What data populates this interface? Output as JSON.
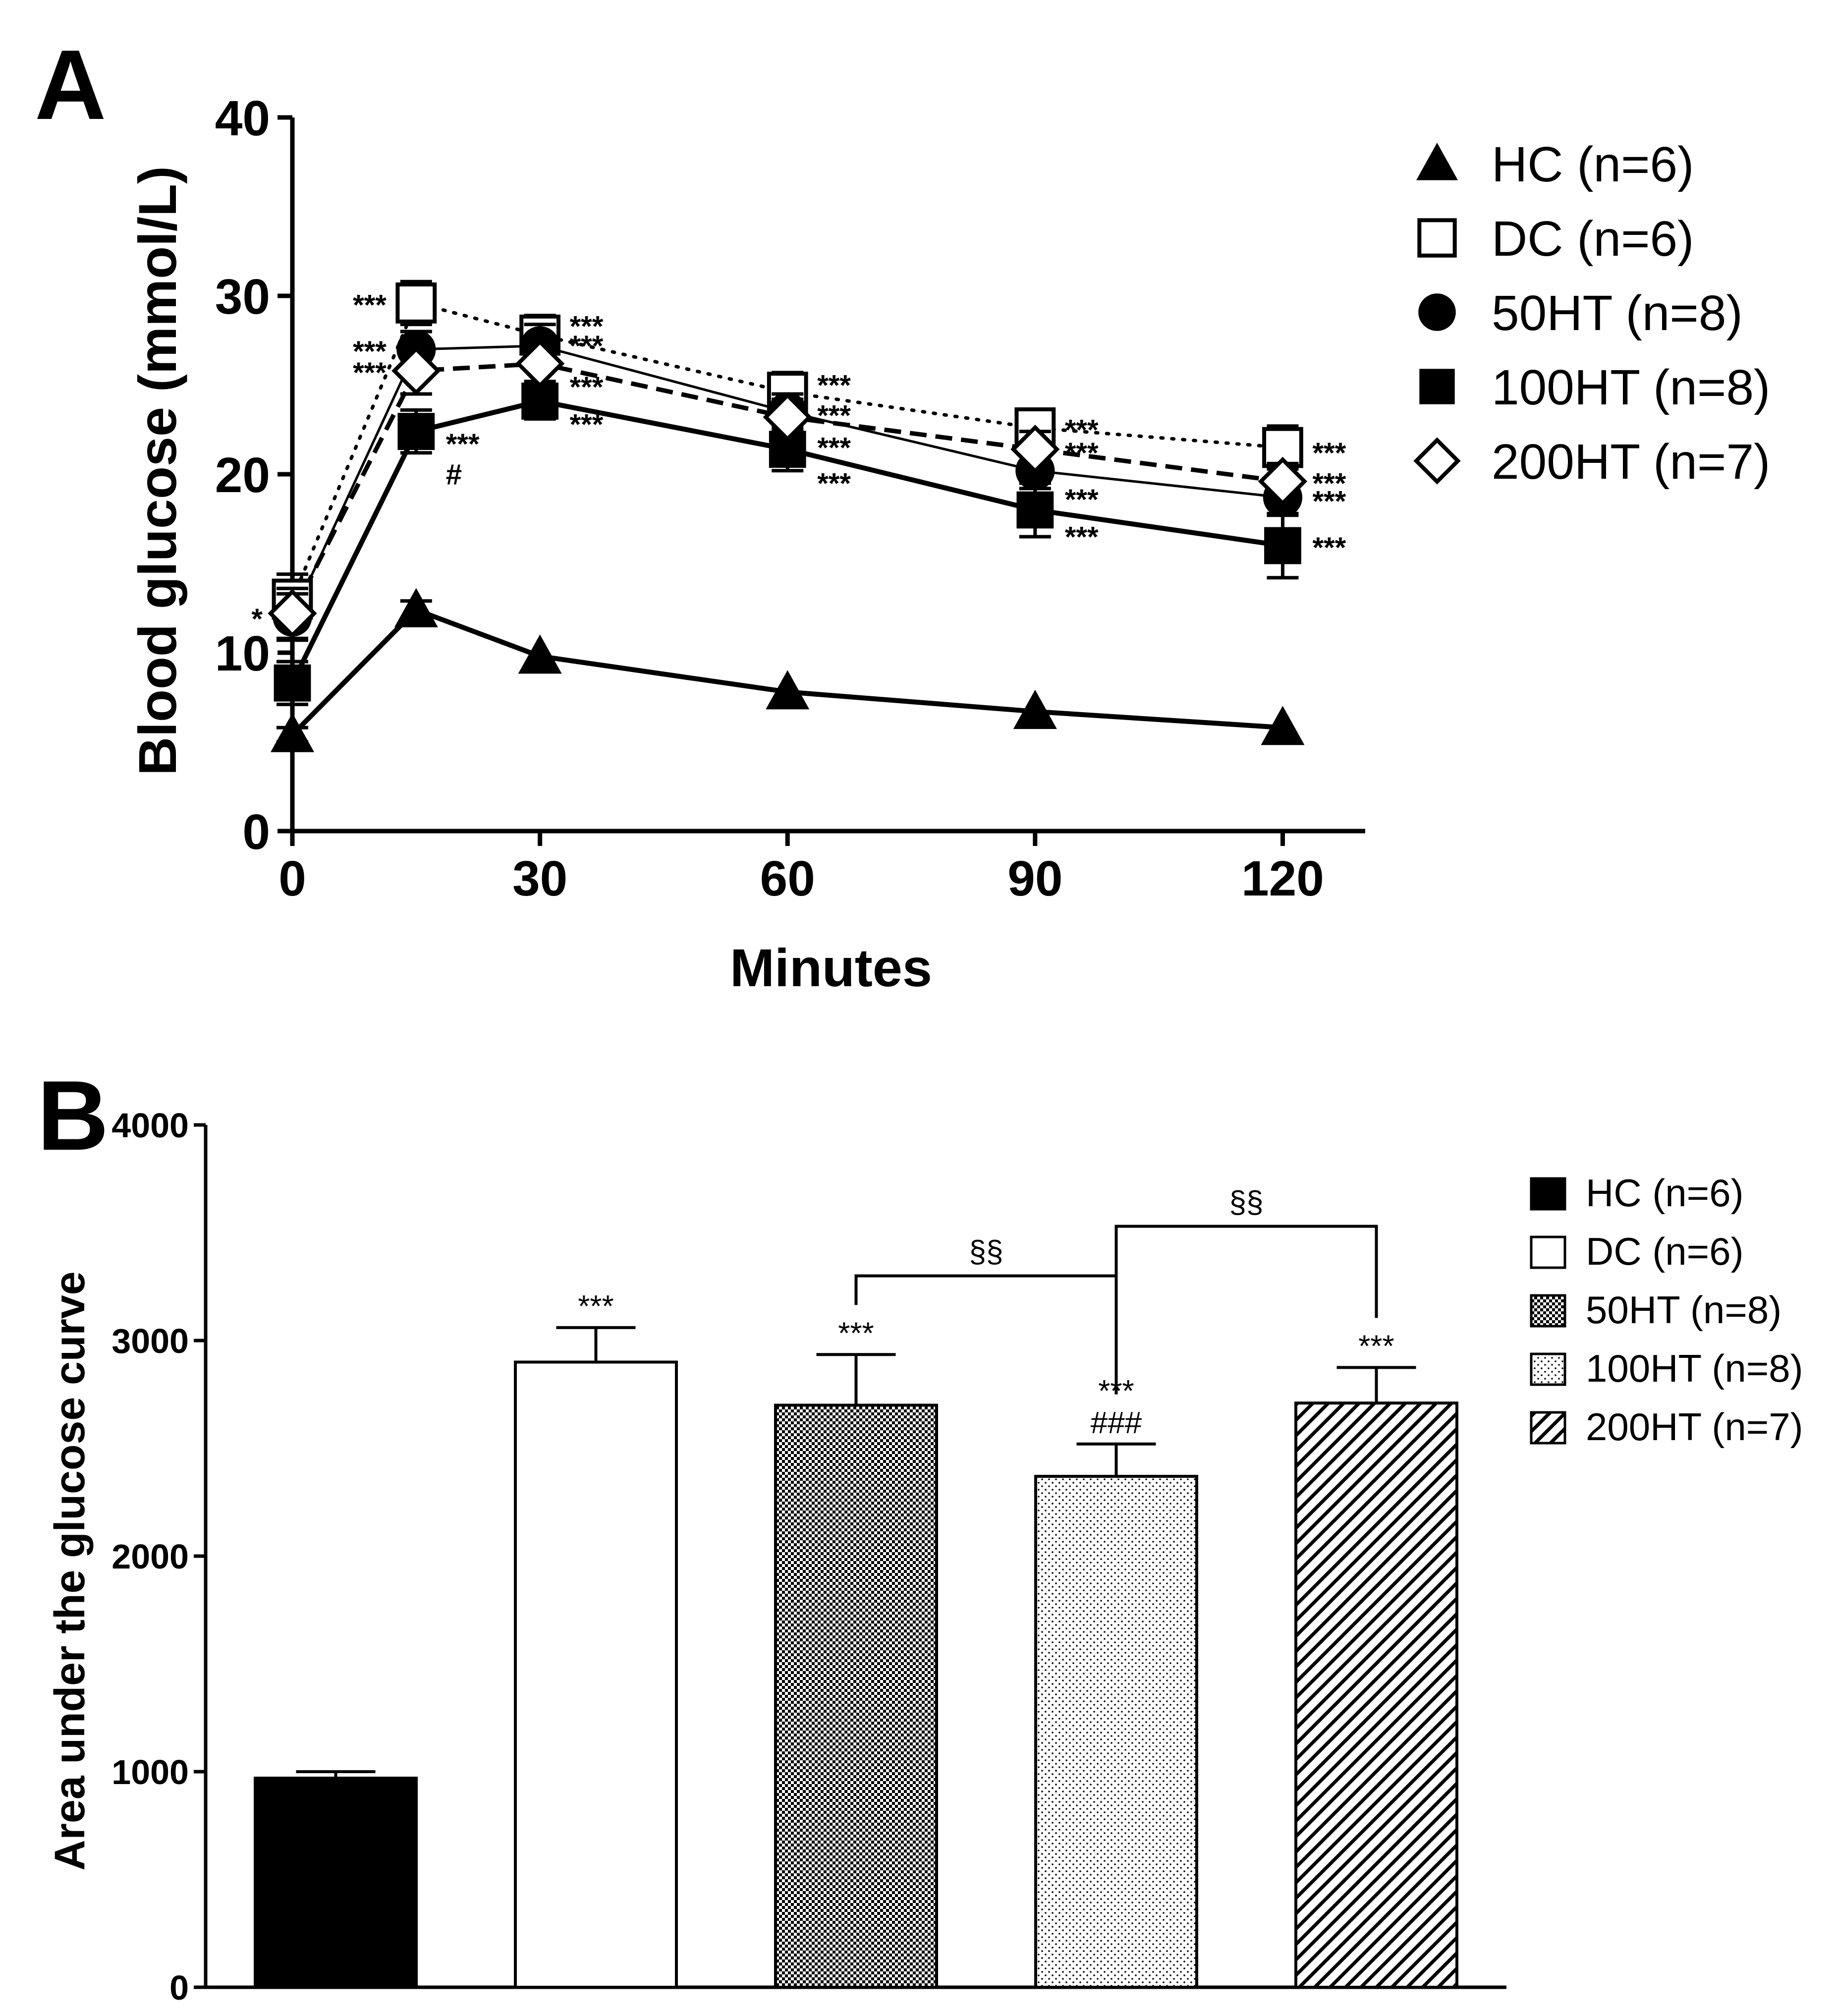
{
  "chart_data": [
    {
      "type": "line",
      "panel": "A",
      "xlabel": "Minutes",
      "ylabel": "Blood glucose (mmol/L)",
      "x": [
        0,
        15,
        30,
        60,
        90,
        120
      ],
      "xticks": [
        "0",
        "30",
        "60",
        "90",
        "120"
      ],
      "xtick_values": [
        0,
        30,
        60,
        90,
        120
      ],
      "yticks": [
        "0",
        "10",
        "20",
        "30",
        "40"
      ],
      "ytick_values": [
        0,
        10,
        20,
        30,
        40
      ],
      "xlim": [
        0,
        130
      ],
      "ylim": [
        0,
        40
      ],
      "series": [
        {
          "key": "hc",
          "name": "HC (n=6)",
          "marker": "triangle",
          "line": "solid-bold",
          "values": [
            5.4,
            12.4,
            9.8,
            7.8,
            6.7,
            5.8
          ],
          "err": [
            0.4,
            0.5,
            0.3,
            0.3,
            0.3,
            0.3
          ]
        },
        {
          "key": "dc",
          "name": "DC (n=6)",
          "marker": "open-square",
          "line": "dotted",
          "values": [
            13.0,
            29.6,
            27.8,
            24.6,
            22.6,
            21.5
          ],
          "err": [
            1.4,
            1.2,
            1.1,
            1.1,
            1.0,
            1.2
          ]
        },
        {
          "key": "ht50",
          "name": "50HT (n=8)",
          "marker": "filled-circle",
          "line": "solid-thin",
          "values": [
            12.0,
            27.0,
            27.2,
            23.5,
            20.2,
            18.7
          ],
          "err": [
            1.3,
            1.0,
            1.2,
            1.0,
            1.0,
            1.0
          ]
        },
        {
          "key": "ht100",
          "name": "100HT (n=8)",
          "marker": "filled-square",
          "line": "solid-bold",
          "values": [
            8.3,
            22.4,
            24.1,
            21.4,
            18.0,
            16.0
          ],
          "err": [
            1.2,
            1.2,
            1.0,
            1.2,
            1.5,
            1.8
          ]
        },
        {
          "key": "ht200",
          "name": "200HT (n=7)",
          "marker": "open-diamond",
          "line": "dashed",
          "values": [
            12.2,
            25.8,
            26.2,
            23.2,
            21.4,
            19.6
          ],
          "err": [
            1.4,
            1.3,
            1.0,
            1.0,
            1.0,
            1.0
          ]
        }
      ],
      "annotations": [
        {
          "text": "***",
          "x": 15,
          "y": 29.6,
          "side": "left"
        },
        {
          "text": "***",
          "x": 15,
          "y": 27.0,
          "side": "left"
        },
        {
          "text": "***",
          "x": 15,
          "y": 25.8,
          "side": "left"
        },
        {
          "text": "***",
          "x": 15,
          "y": 21.8,
          "side": "right"
        },
        {
          "text": "#",
          "x": 15,
          "y": 20.1,
          "side": "right"
        },
        {
          "text": "*",
          "x": 0,
          "y": 12.0,
          "side": "left"
        },
        {
          "text": "***",
          "x": 30,
          "y": 28.4,
          "side": "right"
        },
        {
          "text": "***",
          "x": 30,
          "y": 27.3,
          "side": "right"
        },
        {
          "text": "***",
          "x": 30,
          "y": 25.0,
          "side": "right"
        },
        {
          "text": "***",
          "x": 30,
          "y": 22.9,
          "side": "right"
        },
        {
          "text": "***",
          "x": 60,
          "y": 25.1,
          "side": "right"
        },
        {
          "text": "***",
          "x": 60,
          "y": 23.4,
          "side": "right"
        },
        {
          "text": "***",
          "x": 60,
          "y": 21.6,
          "side": "right"
        },
        {
          "text": "***",
          "x": 60,
          "y": 19.6,
          "side": "right"
        },
        {
          "text": "***",
          "x": 90,
          "y": 22.6,
          "side": "right"
        },
        {
          "text": "***",
          "x": 90,
          "y": 21.3,
          "side": "right"
        },
        {
          "text": "***",
          "x": 90,
          "y": 18.7,
          "side": "right"
        },
        {
          "text": "***",
          "x": 90,
          "y": 16.6,
          "side": "right"
        },
        {
          "text": "***",
          "x": 120,
          "y": 21.3,
          "side": "right"
        },
        {
          "text": "***",
          "x": 120,
          "y": 19.6,
          "side": "right"
        },
        {
          "text": "***",
          "x": 120,
          "y": 18.6,
          "side": "right"
        },
        {
          "text": "***",
          "x": 120,
          "y": 16.0,
          "side": "right"
        }
      ]
    },
    {
      "type": "bar",
      "panel": "B",
      "xlabel": "",
      "ylabel": "Area under the glucose curve",
      "categories": [
        "HC (n=6)",
        "DC (n=6)",
        "50HT (n=8)",
        "100HT (n=8)",
        "200HT (n=7)"
      ],
      "keys": [
        "hc",
        "dc",
        "ht50",
        "ht100",
        "ht200"
      ],
      "patterns": [
        "solid-black",
        "white",
        "checker",
        "dots",
        "diagonal-hatch"
      ],
      "values": [
        970,
        2900,
        2700,
        2370,
        2710
      ],
      "err": [
        30,
        160,
        235,
        150,
        165
      ],
      "yticks": [
        "0",
        "1000",
        "2000",
        "3000",
        "4000"
      ],
      "ytick_values": [
        0,
        1000,
        2000,
        3000,
        4000
      ],
      "ylim": [
        0,
        4000
      ],
      "bar_labels": [
        {
          "index": 1,
          "lines": [
            "***"
          ]
        },
        {
          "index": 2,
          "lines": [
            "***"
          ]
        },
        {
          "index": 3,
          "lines": [
            "***",
            "###"
          ]
        },
        {
          "index": 4,
          "lines": [
            "***"
          ]
        }
      ],
      "brackets": [
        {
          "from": 2,
          "to": 3,
          "text": "§§",
          "level": 3300
        },
        {
          "from": 3,
          "to": 4,
          "text": "§§",
          "level": 3530
        }
      ]
    }
  ],
  "panels": {
    "a_label": "A",
    "b_label": "B"
  }
}
